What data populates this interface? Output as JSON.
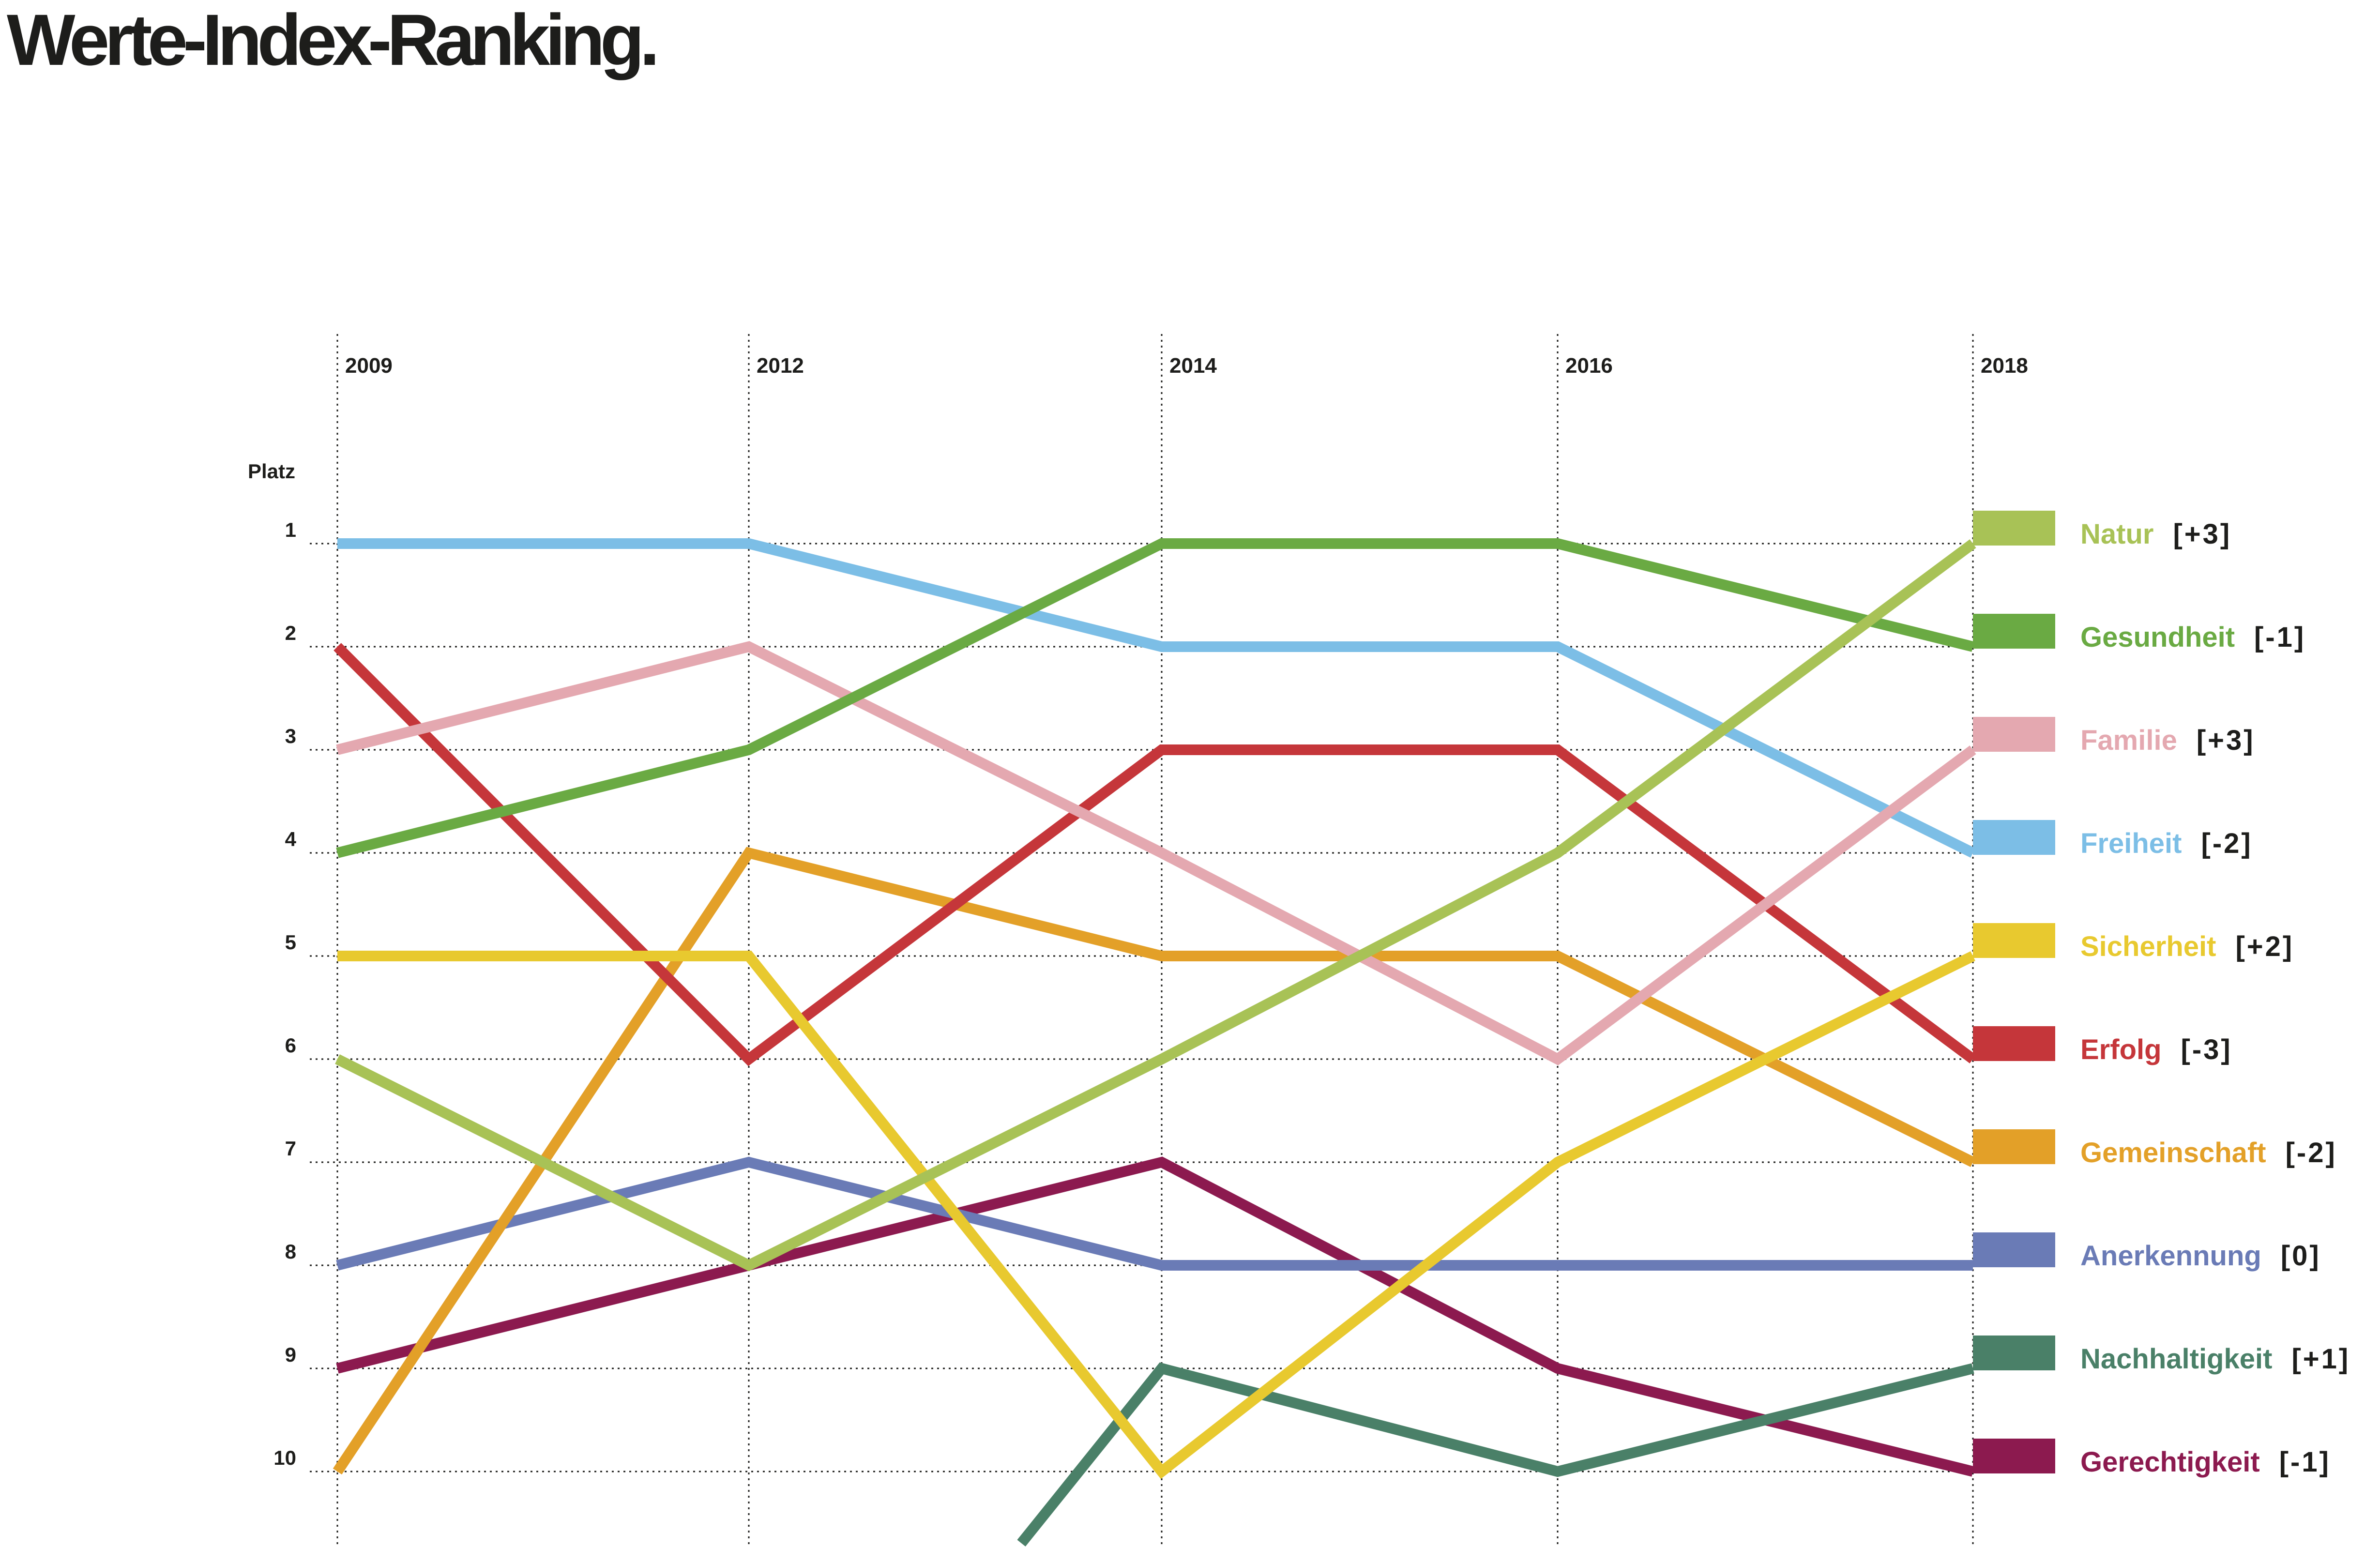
{
  "title": "Werte-Index-Ranking.",
  "chart_data": {
    "type": "line",
    "title": "Werte-Index-Ranking.",
    "ylabel": "Platz",
    "x": [
      "2009",
      "2012",
      "2014",
      "2016",
      "2018"
    ],
    "y_ticks": [
      "1",
      "2",
      "3",
      "4",
      "5",
      "6",
      "7",
      "8",
      "9",
      "10"
    ],
    "y_inverted": true,
    "ylim": [
      1,
      10
    ],
    "grid": true,
    "legend_position": "right",
    "series": [
      {
        "name": "Natur",
        "change": "[+3]",
        "color": "#a8c256",
        "values": [
          6,
          8,
          6,
          4,
          1
        ]
      },
      {
        "name": "Gesundheit",
        "change": "[-1]",
        "color": "#6aaa43",
        "values": [
          4,
          3,
          1,
          1,
          2
        ]
      },
      {
        "name": "Familie",
        "change": "[+3]",
        "color": "#e4a8b0",
        "values": [
          3,
          2,
          4,
          6,
          3
        ]
      },
      {
        "name": "Freiheit",
        "change": "[-2]",
        "color": "#7cbee6",
        "values": [
          1,
          1,
          2,
          2,
          4
        ]
      },
      {
        "name": "Sicherheit",
        "change": "[+2]",
        "color": "#e8c92f",
        "values": [
          5,
          5,
          10,
          7,
          5
        ]
      },
      {
        "name": "Erfolg",
        "change": "[-3]",
        "color": "#c5363a",
        "values": [
          2,
          6,
          3,
          3,
          6
        ]
      },
      {
        "name": "Gemeinschaft",
        "change": "[-2]",
        "color": "#e3a028",
        "values": [
          10,
          4,
          5,
          5,
          7
        ]
      },
      {
        "name": "Anerkennung",
        "change": "[0]",
        "color": "#6a7bb6",
        "values": [
          8,
          7,
          8,
          8,
          8
        ]
      },
      {
        "name": "Nachhaltigkeit",
        "change": "[+1]",
        "color": "#4a8068",
        "values": [
          null,
          null,
          9,
          10,
          9
        ]
      },
      {
        "name": "Gerechtigkeit",
        "change": "[-1]",
        "color": "#8c1a4f",
        "values": [
          9,
          8,
          7,
          9,
          10
        ]
      }
    ]
  }
}
